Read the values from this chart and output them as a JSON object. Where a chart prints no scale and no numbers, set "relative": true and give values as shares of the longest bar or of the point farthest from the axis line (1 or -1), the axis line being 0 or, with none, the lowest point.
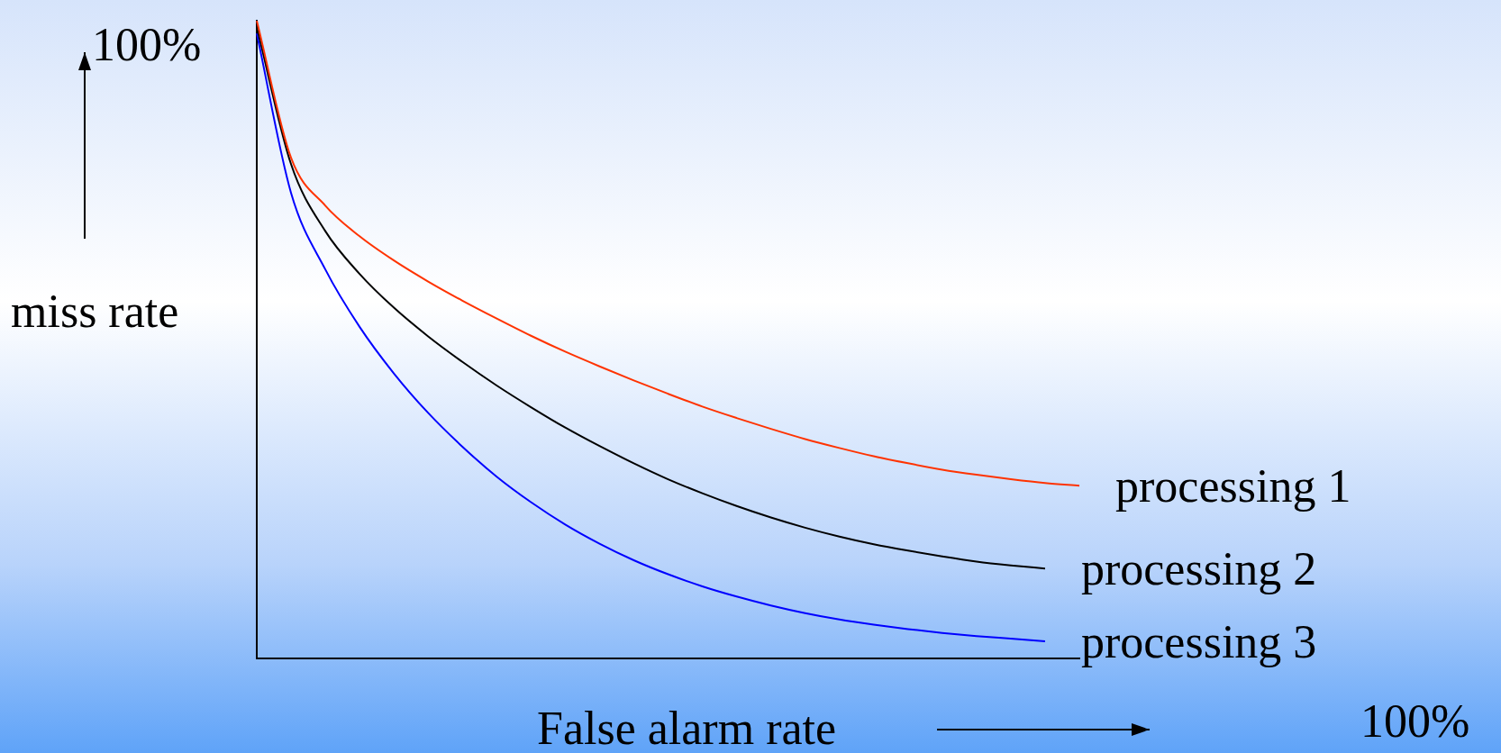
{
  "chart_data": {
    "type": "line",
    "xlabel": "False alarm rate",
    "ylabel": "miss rate",
    "annotations": [
      "100%",
      "100%"
    ],
    "relative": true,
    "marker": "none",
    "line_style": "solid",
    "categories": [
      null,
      null,
      null,
      null,
      null,
      null,
      null,
      null,
      null,
      null,
      null,
      null,
      null,
      null,
      null,
      null,
      null,
      null,
      null,
      null,
      null,
      null,
      null,
      null,
      null
    ],
    "series": [
      {
        "name": "processing 1",
        "color": "#ff3300",
        "values": [
          1.0,
          0.785,
          0.71,
          0.662,
          0.624,
          0.591,
          0.561,
          0.533,
          0.506,
          0.481,
          0.458,
          0.436,
          0.415,
          0.395,
          0.377,
          0.36,
          0.344,
          0.33,
          0.317,
          0.306,
          0.296,
          0.288,
          0.281,
          0.275,
          0.271
        ]
      },
      {
        "name": "processing 2",
        "color": "#000000",
        "values": [
          0.99,
          0.775,
          0.67,
          0.603,
          0.55,
          0.505,
          0.465,
          0.428,
          0.394,
          0.362,
          0.333,
          0.306,
          0.281,
          0.259,
          0.239,
          0.221,
          0.205,
          0.191,
          0.179,
          0.169,
          0.16,
          0.152,
          0.146,
          0.141,
          null
        ]
      },
      {
        "name": "processing 3",
        "color": "#0000ff",
        "values": [
          0.98,
          0.73,
          0.61,
          0.52,
          0.447,
          0.385,
          0.332,
          0.285,
          0.245,
          0.21,
          0.18,
          0.154,
          0.132,
          0.113,
          0.097,
          0.083,
          0.071,
          0.061,
          0.053,
          0.046,
          0.04,
          0.035,
          0.031,
          0.027,
          null
        ]
      }
    ]
  }
}
